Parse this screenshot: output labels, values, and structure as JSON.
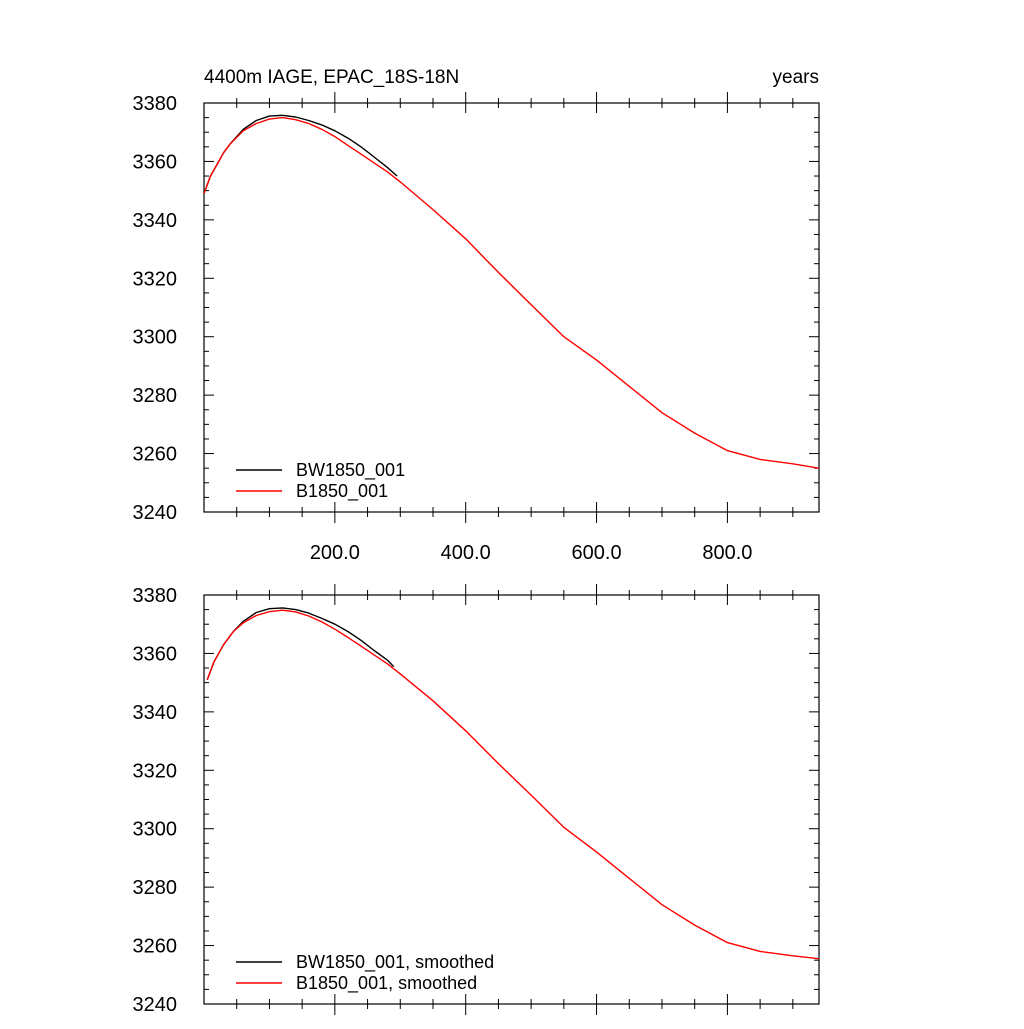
{
  "chart_data": [
    {
      "type": "line",
      "title": "4400m IAGE, EPAC_18S-18N",
      "right_title": "years",
      "xlabel": "",
      "ylabel": "",
      "xlim": [
        0,
        940
      ],
      "ylim": [
        3240,
        3380
      ],
      "xticks": [
        200,
        400,
        600,
        800
      ],
      "xtick_labels": [
        "200.0",
        "400.0",
        "600.0",
        "800.0"
      ],
      "yticks": [
        3240,
        3260,
        3280,
        3300,
        3320,
        3340,
        3360,
        3380
      ],
      "ytick_labels": [
        "3240",
        "3260",
        "3280",
        "3300",
        "3320",
        "3340",
        "3360",
        "3380"
      ],
      "legend_position": "bottom-left",
      "series": [
        {
          "name": "BW1850_001",
          "color": "#000000",
          "x": [
            0,
            10,
            20,
            30,
            40,
            60,
            80,
            100,
            120,
            140,
            160,
            180,
            200,
            220,
            240,
            260,
            280,
            295
          ],
          "y": [
            3349,
            3355,
            3359,
            3363,
            3366,
            3371,
            3374,
            3375.5,
            3375.8,
            3375.2,
            3374,
            3372.5,
            3370.5,
            3368,
            3365,
            3361.5,
            3358,
            3355
          ]
        },
        {
          "name": "B1850_001",
          "color": "#ff0000",
          "x": [
            0,
            10,
            20,
            30,
            40,
            60,
            80,
            100,
            120,
            140,
            160,
            180,
            200,
            220,
            240,
            260,
            280,
            300,
            350,
            400,
            450,
            500,
            550,
            600,
            650,
            700,
            750,
            800,
            850,
            900,
            940
          ],
          "y": [
            3349,
            3355,
            3359,
            3363,
            3366,
            3370.5,
            3373,
            3374.5,
            3375,
            3374.3,
            3373,
            3371,
            3368.5,
            3365.5,
            3362.5,
            3359.5,
            3356.5,
            3353,
            3343.5,
            3333.5,
            3322,
            3311,
            3300,
            3292,
            3283,
            3274,
            3267,
            3261,
            3258,
            3256.5,
            3255
          ]
        }
      ]
    },
    {
      "type": "line",
      "title": "",
      "xlabel": "",
      "ylabel": "",
      "xlim": [
        0,
        940
      ],
      "ylim": [
        3240,
        3380
      ],
      "xticks": [
        200,
        400,
        600,
        800
      ],
      "xtick_labels": [],
      "yticks": [
        3240,
        3260,
        3280,
        3300,
        3320,
        3340,
        3360,
        3380
      ],
      "ytick_labels": [
        "3240",
        "3260",
        "3280",
        "3300",
        "3320",
        "3340",
        "3360",
        "3380"
      ],
      "legend_position": "bottom-left",
      "series": [
        {
          "name": "BW1850_001, smoothed",
          "color": "#000000",
          "x": [
            5,
            15,
            30,
            45,
            60,
            80,
            100,
            120,
            140,
            160,
            180,
            200,
            220,
            240,
            260,
            280,
            290
          ],
          "y": [
            3351,
            3357,
            3363,
            3367.5,
            3371,
            3374,
            3375.3,
            3375.6,
            3375,
            3373.8,
            3372,
            3370,
            3367.5,
            3364.5,
            3361,
            3357.8,
            3355.5
          ]
        },
        {
          "name": "B1850_001, smoothed",
          "color": "#ff0000",
          "x": [
            5,
            15,
            30,
            45,
            60,
            80,
            100,
            120,
            140,
            160,
            180,
            200,
            220,
            240,
            260,
            280,
            300,
            350,
            400,
            450,
            500,
            550,
            600,
            650,
            700,
            750,
            800,
            850,
            900,
            940
          ],
          "y": [
            3351,
            3357,
            3363,
            3367.5,
            3370.5,
            3373,
            3374.3,
            3374.8,
            3374.2,
            3372.8,
            3370.8,
            3368.3,
            3365.5,
            3362.5,
            3359.5,
            3356.5,
            3353,
            3343.8,
            3333.5,
            3322.3,
            3311.5,
            3300.5,
            3292,
            3283,
            3274,
            3267,
            3261,
            3258,
            3256.5,
            3255.5
          ]
        }
      ]
    }
  ]
}
